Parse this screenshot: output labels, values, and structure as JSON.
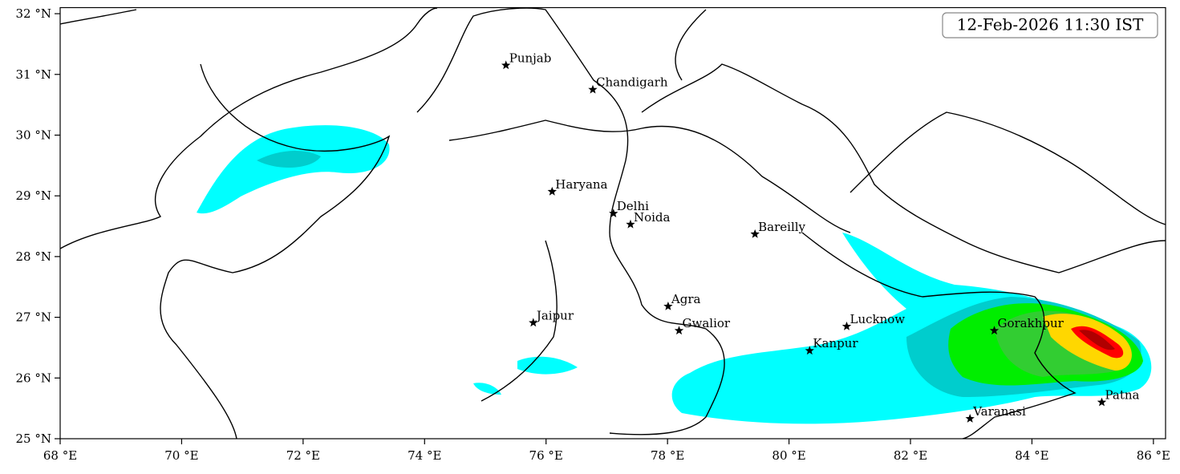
{
  "map": {
    "timestamp": "12-Feb-2026 11:30 IST",
    "xlim": [
      68,
      86.2
    ],
    "ylim": [
      25,
      32.1
    ],
    "xticks": [
      {
        "value": 68,
        "label": "68 °E"
      },
      {
        "value": 70,
        "label": "70 °E"
      },
      {
        "value": 72,
        "label": "72 °E"
      },
      {
        "value": 74,
        "label": "74 °E"
      },
      {
        "value": 76,
        "label": "76 °E"
      },
      {
        "value": 78,
        "label": "78 °E"
      },
      {
        "value": 80,
        "label": "80 °E"
      },
      {
        "value": 82,
        "label": "82 °E"
      },
      {
        "value": 84,
        "label": "84 °E"
      },
      {
        "value": 86,
        "label": "86 °E"
      }
    ],
    "yticks": [
      {
        "value": 25,
        "label": "25 °N"
      },
      {
        "value": 26,
        "label": "26 °N"
      },
      {
        "value": 27,
        "label": "27 °N"
      },
      {
        "value": 28,
        "label": "28 °N"
      },
      {
        "value": 29,
        "label": "29 °N"
      },
      {
        "value": 30,
        "label": "30 °N"
      },
      {
        "value": 31,
        "label": "31 °N"
      },
      {
        "value": 32,
        "label": "32 °N"
      }
    ],
    "cities": [
      {
        "name": "Punjab",
        "lon": 75.34,
        "lat": 31.15
      },
      {
        "name": "Chandigarh",
        "lon": 76.77,
        "lat": 30.75
      },
      {
        "name": "Haryana",
        "lon": 76.1,
        "lat": 29.07
      },
      {
        "name": "Delhi",
        "lon": 77.11,
        "lat": 28.71
      },
      {
        "name": "Noida",
        "lon": 77.39,
        "lat": 28.53
      },
      {
        "name": "Bareilly",
        "lon": 79.44,
        "lat": 28.37
      },
      {
        "name": "Jaipur",
        "lon": 75.79,
        "lat": 26.91
      },
      {
        "name": "Agra",
        "lon": 78.01,
        "lat": 27.18
      },
      {
        "name": "Gwalior",
        "lon": 78.19,
        "lat": 26.78
      },
      {
        "name": "Lucknow",
        "lon": 80.95,
        "lat": 26.85
      },
      {
        "name": "Kanpur",
        "lon": 80.34,
        "lat": 26.45
      },
      {
        "name": "Gorakhpur",
        "lon": 83.38,
        "lat": 26.78
      },
      {
        "name": "Varanasi",
        "lon": 82.98,
        "lat": 25.33
      },
      {
        "name": "Patna",
        "lon": 85.15,
        "lat": 25.6
      }
    ]
  }
}
